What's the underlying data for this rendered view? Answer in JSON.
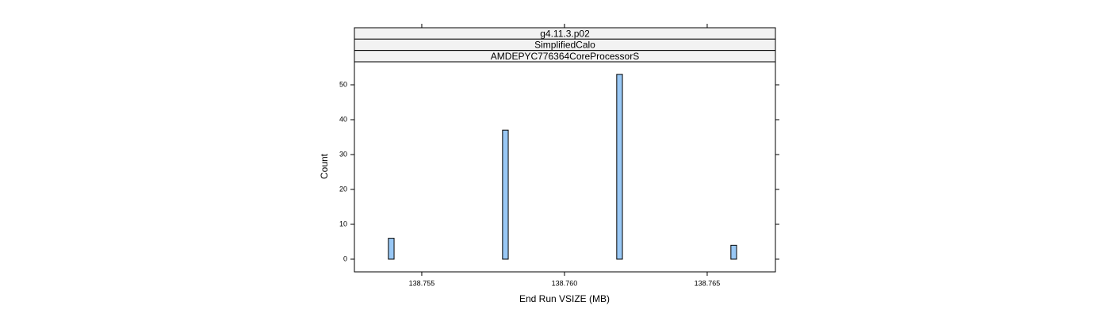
{
  "chart_data": {
    "type": "histogram",
    "strips": [
      "g4.11.3.p02",
      "SimplifiedCalo",
      "AMDEPYC776364CoreProcessorS"
    ],
    "xlabel": "End Run VSIZE (MB)",
    "ylabel": "Count",
    "bins": [
      138.75343,
      138.75363,
      138.75383,
      138.75403,
      138.75423,
      138.75443,
      138.75463,
      138.75483,
      138.75503,
      138.75523,
      138.75543,
      138.75563,
      138.75583,
      138.75603,
      138.75623,
      138.75643,
      138.75663,
      138.75683,
      138.75703,
      138.75723,
      138.75743,
      138.75763,
      138.75783,
      138.75803,
      138.75823,
      138.75843,
      138.75863,
      138.75883,
      138.75903,
      138.75923,
      138.75943,
      138.75963,
      138.75983,
      138.76003,
      138.76023,
      138.76043,
      138.76063,
      138.76083,
      138.76103,
      138.76123,
      138.76143,
      138.76163,
      138.76183,
      138.76203,
      138.76223,
      138.76243,
      138.76263,
      138.76283,
      138.76303,
      138.76323,
      138.76343,
      138.76363,
      138.76383,
      138.76403,
      138.76423,
      138.76443,
      138.76463,
      138.76483,
      138.76503,
      138.76523,
      138.76543,
      138.76563,
      138.76583,
      138.76603,
      138.76623,
      138.76643,
      138.76663
    ],
    "values": [
      0,
      0,
      6,
      0,
      0,
      0,
      0,
      0,
      0,
      0,
      0,
      0,
      0,
      0,
      0,
      0,
      0,
      0,
      0,
      0,
      0,
      0,
      37,
      0,
      0,
      0,
      0,
      0,
      0,
      0,
      0,
      0,
      0,
      0,
      0,
      0,
      0,
      0,
      0,
      0,
      0,
      0,
      53,
      0,
      0,
      0,
      0,
      0,
      0,
      0,
      0,
      0,
      0,
      0,
      0,
      0,
      0,
      0,
      0,
      0,
      0,
      0,
      4,
      0,
      0,
      0
    ],
    "color": "#99c8f5",
    "xlim": [
      138.75264,
      138.76739
    ],
    "xticks": [
      138.755,
      138.76,
      {
        "value": 138.76,
        "label": "138.760"
      },
      138.765
    ],
    "ylim": [
      -3.64,
      56.59
    ],
    "yticks": [
      0,
      10,
      20,
      30,
      40,
      50
    ]
  }
}
